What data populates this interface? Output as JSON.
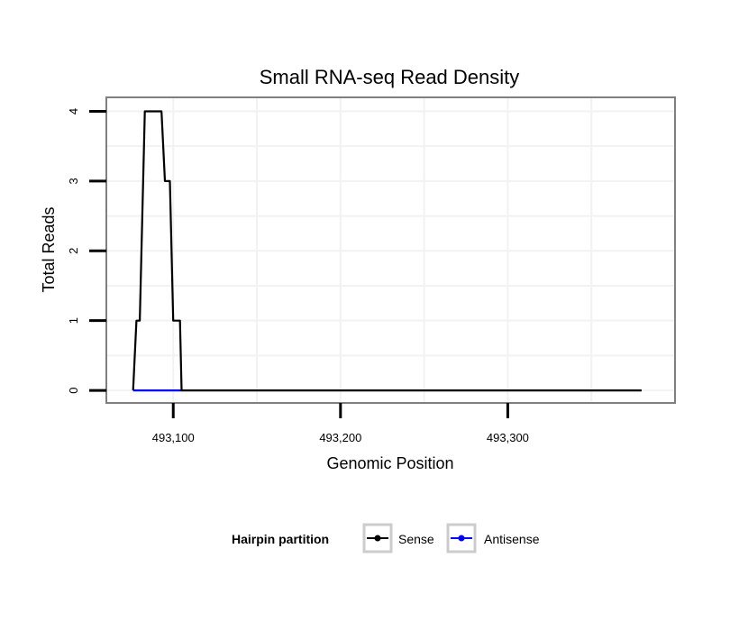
{
  "chart_data": {
    "type": "line",
    "title": "Small RNA-seq Read Density",
    "xlabel": "Genomic Position",
    "ylabel": "Total Reads",
    "xlim": [
      493060,
      493400
    ],
    "ylim": [
      -0.18,
      4.2
    ],
    "x_ticks": [
      493100,
      493200,
      493300
    ],
    "x_tick_labels": [
      "493,100",
      "493,200",
      "493,300"
    ],
    "y_ticks": [
      0,
      1,
      2,
      3,
      4
    ],
    "y_tick_labels": [
      "0",
      "1",
      "2",
      "3",
      "4"
    ],
    "grid": true,
    "legend": {
      "title": "Hairpin partition",
      "position": "bottom",
      "entries": [
        {
          "name": "Sense",
          "color": "#000000"
        },
        {
          "name": "Antisense",
          "color": "#0000ff"
        }
      ]
    },
    "series": [
      {
        "name": "Sense",
        "color": "#000000",
        "x": [
          493076,
          493078,
          493080,
          493083,
          493086,
          493093,
          493095,
          493098,
          493100,
          493104,
          493105,
          493380
        ],
        "y": [
          0,
          1,
          1,
          4,
          4,
          4,
          3,
          3,
          1,
          1,
          0,
          0
        ]
      },
      {
        "name": "Antisense",
        "color": "#0000ff",
        "x": [
          493076,
          493105
        ],
        "y": [
          0,
          0
        ]
      }
    ]
  }
}
